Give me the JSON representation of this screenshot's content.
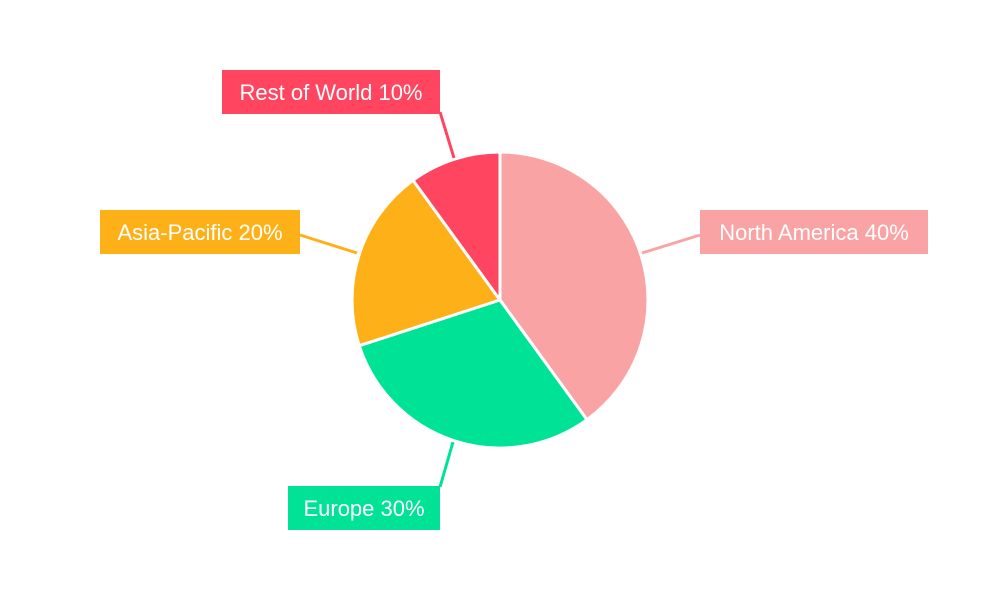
{
  "chart_data": {
    "type": "pie",
    "title": "",
    "start_angle": "12 o'clock, clockwise",
    "slices": [
      {
        "label": "North America",
        "value": 40,
        "text": "North America 40%",
        "color": "#f9a3a4"
      },
      {
        "label": "Europe",
        "value": 30,
        "text": "Europe 30%",
        "color": "#00e396"
      },
      {
        "label": "Asia-Pacific",
        "value": 20,
        "text": "Asia-Pacific 20%",
        "color": "#feb019"
      },
      {
        "label": "Rest of World",
        "value": 10,
        "text": "Rest of World 10%",
        "color": "#ff4560"
      }
    ]
  }
}
